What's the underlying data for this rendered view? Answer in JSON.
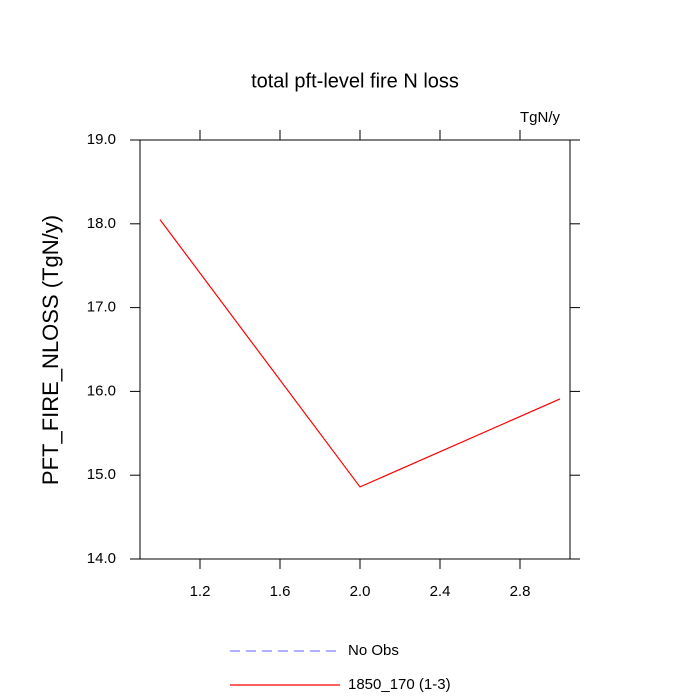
{
  "chart_data": {
    "type": "line",
    "title": "total pft-level fire N loss",
    "units_label": "TgN/y",
    "y_label": "PFT_FIRE_NLOSS  (TgN/y)",
    "x": [
      1,
      2,
      3
    ],
    "series": [
      {
        "name": "No Obs",
        "color": "#8080ff",
        "dashed": true,
        "values": [
          null,
          null,
          null
        ]
      },
      {
        "name": "1850_170 (1-3)",
        "color": "#ff0000",
        "dashed": false,
        "values": [
          18.05,
          14.86,
          15.91
        ]
      }
    ],
    "xlim": [
      0.9,
      3.05
    ],
    "xticks": [
      1.2,
      1.6,
      {
        "value": 2.0,
        "label": "2.0"
      },
      2.4,
      2.8
    ],
    "ylim": [
      14,
      19
    ],
    "yticks": [
      {
        "value": 14,
        "label": "14.0"
      },
      {
        "value": 15,
        "label": "15.0"
      },
      {
        "value": 16,
        "label": "16.0"
      },
      {
        "value": 17,
        "label": "17.0"
      },
      {
        "value": 18,
        "label": "18.0"
      },
      {
        "value": 19,
        "label": "19.0"
      }
    ]
  }
}
